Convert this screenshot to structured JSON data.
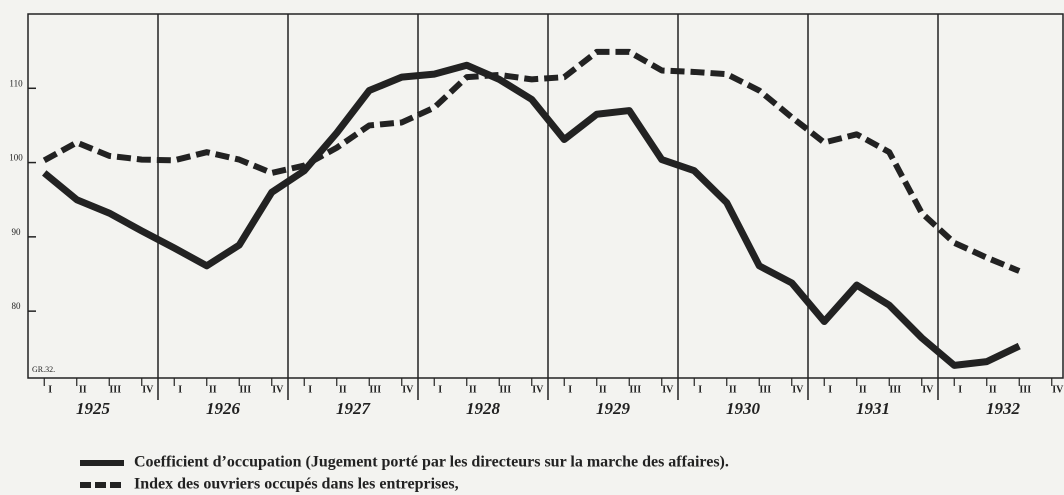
{
  "chart_data": {
    "type": "line",
    "annotation": "GR.32.",
    "categories": [
      "I",
      "II",
      "III",
      "IV",
      "I",
      "II",
      "III",
      "IV",
      "I",
      "II",
      "III",
      "IV",
      "I",
      "II",
      "III",
      "IV",
      "I",
      "II",
      "III",
      "IV",
      "I",
      "II",
      "III",
      "IV",
      "I",
      "II",
      "III",
      "IV",
      "I",
      "II",
      "III",
      "IV"
    ],
    "years": [
      "1925",
      "1926",
      "1927",
      "1928",
      "1929",
      "1930",
      "1931",
      "1932"
    ],
    "series": [
      {
        "name": "Coefficient d’occupation (Jugement porté par les directeurs sur la marche des affaires).",
        "color": "#222222",
        "style": "solid",
        "values": [
          98.6,
          95,
          93.2,
          90.8,
          88.5,
          86.1,
          88.9,
          96,
          98.9,
          104,
          109.7,
          111.5,
          111.9,
          113.1,
          111.2,
          108.5,
          103.1,
          106.5,
          107,
          100.4,
          98.9,
          94.6,
          86.1,
          83.8,
          78.6,
          83.5,
          80.8,
          76.4,
          72.7,
          73.2,
          75.3,
          null
        ]
      },
      {
        "name": "Index des ouvriers occupés dans les entreprises,",
        "color": "#222222",
        "style": "dashed",
        "values": [
          100.3,
          102.7,
          100.9,
          100.4,
          100.3,
          101.4,
          100.4,
          98.6,
          99.6,
          102,
          105,
          105.4,
          107.4,
          111.5,
          111.8,
          111.2,
          111.5,
          114.9,
          114.9,
          112.4,
          112.2,
          111.9,
          109.7,
          106.1,
          102.7,
          103.8,
          101.4,
          93.2,
          89.2,
          87.2,
          85.4,
          null
        ]
      }
    ],
    "ylim": [
      71,
      120
    ],
    "yticks": [
      80,
      90,
      100,
      110
    ]
  }
}
